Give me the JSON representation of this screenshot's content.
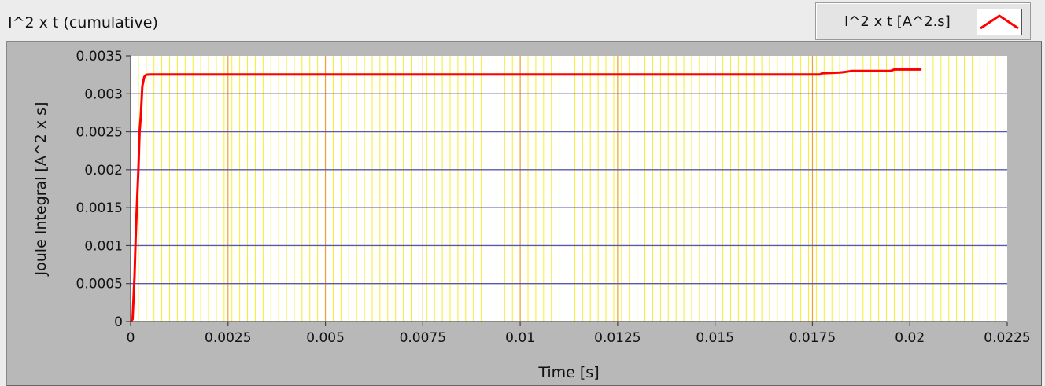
{
  "chart_data": {
    "type": "line",
    "title": "I^2 x t (cumulative)",
    "xlabel": "Time [s]",
    "ylabel": "Joule Integral [A^2 x s]",
    "xlim": [
      0,
      0.0225
    ],
    "ylim": [
      0,
      0.0035
    ],
    "x_ticks": [
      {
        "v": 0,
        "label": "0"
      },
      {
        "v": 0.0025,
        "label": "0.0025"
      },
      {
        "v": 0.005,
        "label": "0.005"
      },
      {
        "v": 0.0075,
        "label": "0.0075"
      },
      {
        "v": 0.01,
        "label": "0.01"
      },
      {
        "v": 0.0125,
        "label": "0.0125"
      },
      {
        "v": 0.015,
        "label": "0.015"
      },
      {
        "v": 0.0175,
        "label": "0.0175"
      },
      {
        "v": 0.02,
        "label": "0.02"
      },
      {
        "v": 0.0225,
        "label": "0.0225"
      }
    ],
    "y_ticks": [
      {
        "v": 0,
        "label": "0"
      },
      {
        "v": 0.0005,
        "label": "0.0005"
      },
      {
        "v": 0.001,
        "label": "0.001"
      },
      {
        "v": 0.0015,
        "label": "0.0015"
      },
      {
        "v": 0.002,
        "label": "0.002"
      },
      {
        "v": 0.0025,
        "label": "0.0025"
      },
      {
        "v": 0.003,
        "label": "0.003"
      },
      {
        "v": 0.0035,
        "label": "0.0035"
      }
    ],
    "minor_x_step": 0.0002,
    "grid": true,
    "legend": "top-right",
    "series": [
      {
        "name": "I^2 x t [A^2.s]",
        "color": "#ff0000",
        "points": [
          [
            0.0,
            0.0
          ],
          [
            5e-05,
            3e-05
          ],
          [
            0.0001,
            0.0006
          ],
          [
            0.00013,
            0.0011
          ],
          [
            0.00016,
            0.0015
          ],
          [
            0.0002,
            0.002
          ],
          [
            0.00023,
            0.0025
          ],
          [
            0.00026,
            0.0027
          ],
          [
            0.0003,
            0.0031
          ],
          [
            0.00035,
            0.00322
          ],
          [
            0.0004,
            0.00325
          ],
          [
            0.0005,
            0.003255
          ],
          [
            0.005,
            0.003255
          ],
          [
            0.01,
            0.003255
          ],
          [
            0.015,
            0.003255
          ],
          [
            0.0177,
            0.003255
          ],
          [
            0.01775,
            0.00327
          ],
          [
            0.0182,
            0.00328
          ],
          [
            0.0183,
            0.003285
          ],
          [
            0.0185,
            0.0033
          ],
          [
            0.0195,
            0.0033
          ],
          [
            0.0196,
            0.00332
          ],
          [
            0.0203,
            0.00332
          ]
        ]
      }
    ]
  },
  "colors": {
    "plot_bg": "#ffffff",
    "minor_grid": "#f7ee2a",
    "major_x_grid": "#f0a030",
    "major_y_grid": "#5a5aa8",
    "frame_bg": "#b8b8b8"
  }
}
